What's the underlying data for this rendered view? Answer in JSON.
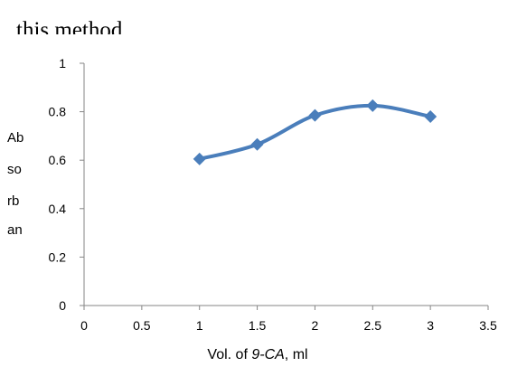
{
  "heading": "this method",
  "chart_data": {
    "type": "line",
    "x": [
      1,
      1.5,
      2,
      2.5,
      3
    ],
    "series": [
      {
        "values": [
          0.605,
          0.665,
          0.785,
          0.825,
          0.78
        ]
      }
    ],
    "xticks": [
      "0",
      "0.5",
      "1",
      "1.5",
      "2",
      "2.5",
      "3",
      "3.5"
    ],
    "yticks": [
      "0",
      "0.2",
      "0.4",
      "0.6",
      "0.8",
      "1"
    ],
    "xlim": [
      0,
      3.5
    ],
    "ylim": [
      0,
      1
    ],
    "ylabel_lines": [
      "Ab",
      "so",
      "rb",
      "an"
    ],
    "xlabel_parts": {
      "prefix": "Vol. of ",
      "italic": "9-CA",
      "suffix": ", ml"
    },
    "line_color": "#4a7ebb",
    "marker": "diamond",
    "grid": false
  }
}
